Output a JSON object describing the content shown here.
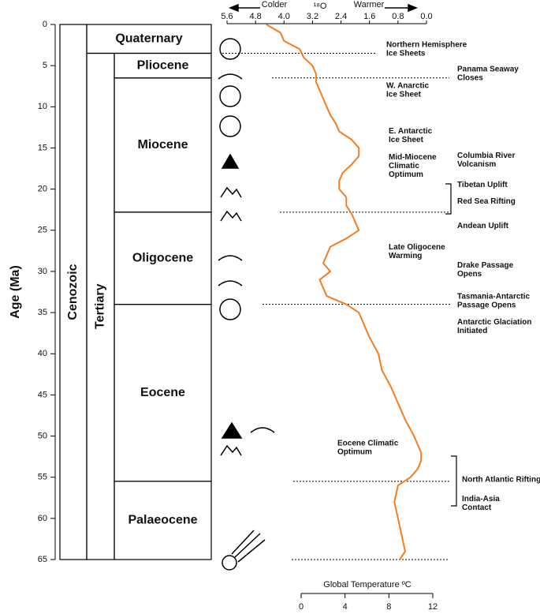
{
  "chart_data": {
    "type": "line",
    "ylabel": "Age (Ma)",
    "ylim": [
      0,
      65
    ],
    "yticks": [
      0,
      5,
      10,
      15,
      20,
      25,
      30,
      35,
      40,
      45,
      50,
      55,
      60,
      65
    ],
    "xlabel": "¹⁸O",
    "colder_label": "Colder",
    "warmer_label": "Warmer",
    "xlim": [
      5.6,
      0.0
    ],
    "xticks": [
      5.6,
      4.8,
      {
        "value": 4,
        "label": "4.0"
      },
      3.2,
      2.4,
      1.6,
      0.8,
      {
        "value": 0,
        "label": "0.0"
      }
    ],
    "x2label": "Global Temperature ºC",
    "x2lim": [
      0,
      12
    ],
    "x2ticks": [
      0,
      4,
      8,
      12
    ],
    "series": [
      {
        "color": "#f07d22",
        "ages": [
          0,
          1,
          2,
          3,
          4,
          5,
          6,
          7,
          8,
          9,
          10,
          11,
          12,
          13,
          14,
          15,
          16,
          17,
          18,
          19,
          20,
          21,
          22,
          23,
          24,
          25,
          26,
          27,
          28,
          29,
          30,
          31,
          32,
          33,
          34,
          35,
          36,
          38,
          40,
          42,
          44,
          46,
          48,
          50,
          51,
          52,
          53,
          54,
          55,
          56,
          58,
          60,
          62,
          64,
          65
        ],
        "values": [
          4.5,
          4.1,
          4.0,
          3.56,
          3.45,
          3.2,
          3.1,
          3.1,
          3.0,
          2.9,
          2.8,
          2.7,
          2.55,
          2.45,
          2.1,
          1.9,
          1.9,
          2.1,
          2.35,
          2.45,
          2.45,
          2.25,
          2.25,
          2.1,
          2.0,
          1.9,
          2.25,
          2.7,
          2.8,
          2.9,
          2.7,
          3.0,
          2.9,
          2.8,
          2.25,
          1.9,
          1.8,
          1.6,
          1.35,
          1.25,
          1.0,
          0.8,
          0.6,
          0.35,
          0.25,
          0.15,
          0.15,
          0.25,
          0.45,
          0.8,
          0.9,
          0.8,
          0.7,
          0.6,
          0.75
        ]
      }
    ],
    "era": {
      "name": "Cenozoic",
      "start": 0,
      "end": 65
    },
    "period": {
      "name": "Tertiary",
      "start": 3.5,
      "end": 65
    },
    "epochs": [
      {
        "name": "Quaternary",
        "start": 0,
        "end": 3.5
      },
      {
        "name": "Pliocene",
        "start": 3.5,
        "end": 6.5
      },
      {
        "name": "Miocene",
        "start": 6.5,
        "end": 22.8
      },
      {
        "name": "Oligocene",
        "start": 22.8,
        "end": 34
      },
      {
        "name": "Eocene",
        "start": 34,
        "end": 55.5
      },
      {
        "name": "Palaeocene",
        "start": 55.5,
        "end": 65
      }
    ],
    "events": [
      {
        "label": [
          "Northern Hemisphere",
          "Ice Sheets"
        ],
        "age": 3
      },
      {
        "label": [
          "Panama Seaway",
          "Closes"
        ],
        "age": 6
      },
      {
        "label": [
          "W. Anarctic",
          "Ice Sheet"
        ],
        "age": 8
      },
      {
        "label": [
          "E. Antarctic",
          "Ice Sheet"
        ],
        "age": 13.5
      },
      {
        "label": [
          "Mid-Miocene",
          "Climatic",
          "Optimum"
        ],
        "age": 17.2
      },
      {
        "label": [
          "Columbia River",
          "Volcanism"
        ],
        "age": 16.5
      },
      {
        "label": [
          "Tibetan Uplift"
        ],
        "age": 19.5
      },
      {
        "label": [
          "Red Sea Rifting"
        ],
        "age": 21.5
      },
      {
        "label": [
          "Andean Uplift"
        ],
        "age": 24.5
      },
      {
        "label": [
          "Late Oligocene",
          "Warming"
        ],
        "age": 27.6
      },
      {
        "label": [
          "Drake Passage",
          "Opens"
        ],
        "age": 29.8
      },
      {
        "label": [
          "Tasmania-Antarctic",
          "Passage Opens"
        ],
        "age": 33.6
      },
      {
        "label": [
          "Antarctic Glaciation",
          "Initiated"
        ],
        "age": 36.7
      },
      {
        "label": [
          "Eocene Climatic",
          "Optimum"
        ],
        "age": 51.4
      },
      {
        "label": [
          "North Atlantic Rifting"
        ],
        "age": 55.3
      },
      {
        "label": [
          "India-Asia",
          "Contact"
        ],
        "age": 58.2
      }
    ]
  }
}
